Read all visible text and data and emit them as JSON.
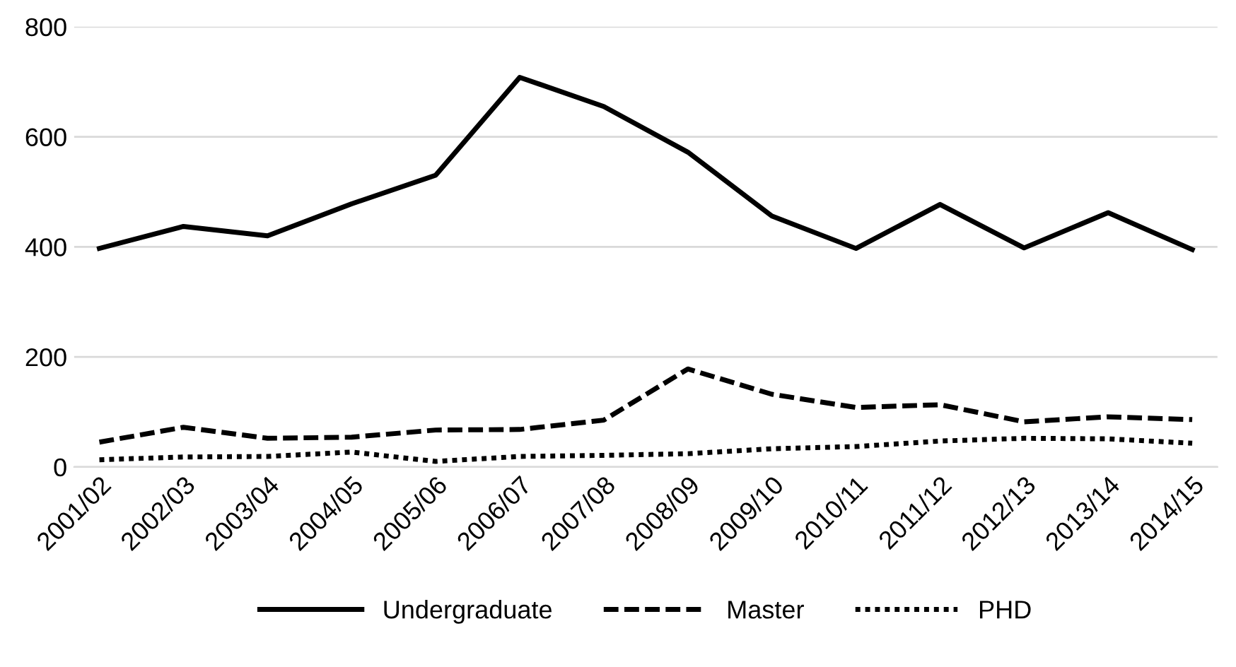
{
  "chart_data": {
    "type": "line",
    "categories": [
      "2001/02",
      "2002/03",
      "2003/04",
      "2004/05",
      "2005/06",
      "2006/07",
      "2007/08",
      "2008/09",
      "2009/10",
      "2010/11",
      "2011/12",
      "2012/13",
      "2013/14",
      "2014/15"
    ],
    "series": [
      {
        "name": "Undergraduate",
        "color": "#000000",
        "line_style": "solid",
        "values": [
          397,
          437,
          420,
          478,
          530,
          708,
          655,
          572,
          456,
          397,
          477,
          398,
          462,
          395
        ]
      },
      {
        "name": "Master",
        "color": "#000000",
        "line_style": "dashed",
        "values": [
          45,
          72,
          52,
          54,
          67,
          68,
          85,
          178,
          132,
          108,
          113,
          82,
          91,
          86
        ]
      },
      {
        "name": "PHD",
        "color": "#000000",
        "line_style": "dotted",
        "values": [
          13,
          18,
          19,
          27,
          10,
          19,
          21,
          24,
          33,
          37,
          47,
          52,
          51,
          43
        ]
      }
    ],
    "ylim": [
      0,
      800
    ],
    "yticks": [
      0,
      200,
      400,
      600,
      800
    ],
    "grid": "y",
    "legend": "bottom",
    "marker": "none"
  }
}
